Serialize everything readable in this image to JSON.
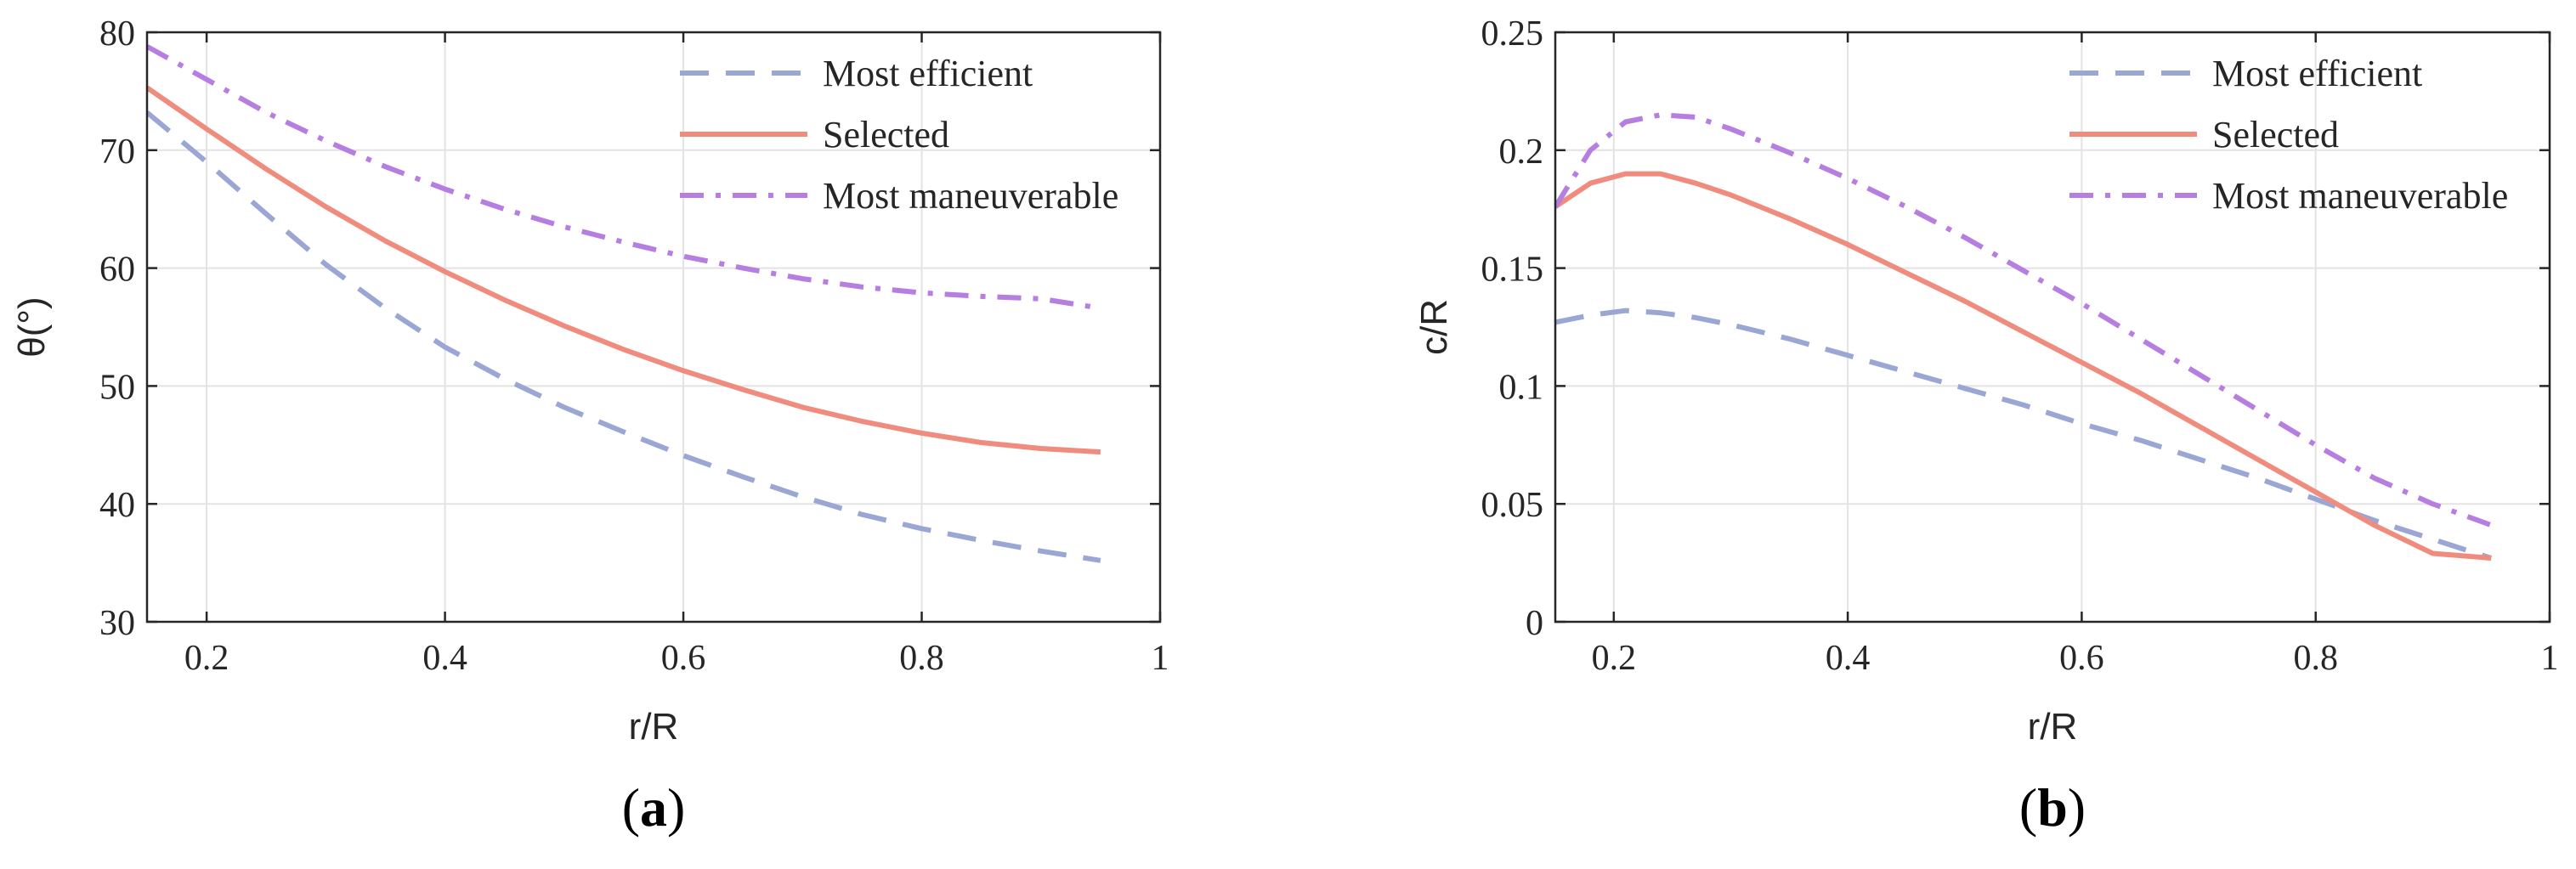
{
  "chart_data": [
    {
      "type": "line",
      "panel_label": "a",
      "xlabel": "r/R",
      "ylabel": "θ(°)",
      "xlim": [
        0.15,
        1
      ],
      "ylim": [
        30,
        80
      ],
      "xticks": [
        0.2,
        0.4,
        0.6,
        0.8,
        1
      ],
      "yticks": [
        30,
        40,
        50,
        60,
        70,
        80
      ],
      "xtick_labels": [
        "0.2",
        "0.4",
        "0.6",
        "0.8",
        "1"
      ],
      "ytick_labels": [
        "30",
        "40",
        "50",
        "60",
        "70",
        "80"
      ],
      "grid": true,
      "legend_position": "top-right",
      "series": [
        {
          "name": "Most efficient",
          "style": "dashed",
          "color": "#9aa6d4",
          "x": [
            0.15,
            0.2,
            0.25,
            0.3,
            0.35,
            0.4,
            0.45,
            0.5,
            0.55,
            0.6,
            0.65,
            0.7,
            0.75,
            0.8,
            0.85,
            0.9,
            0.95
          ],
          "y": [
            73.2,
            69.0,
            64.6,
            60.3,
            56.6,
            53.3,
            50.6,
            48.2,
            46.1,
            44.1,
            42.3,
            40.6,
            39.1,
            37.9,
            36.9,
            36.0,
            35.2
          ]
        },
        {
          "name": "Selected",
          "style": "solid",
          "color": "#f08c7e",
          "x": [
            0.15,
            0.2,
            0.25,
            0.3,
            0.35,
            0.4,
            0.45,
            0.5,
            0.55,
            0.6,
            0.65,
            0.7,
            0.75,
            0.8,
            0.85,
            0.9,
            0.95
          ],
          "y": [
            75.3,
            71.8,
            68.4,
            65.2,
            62.3,
            59.7,
            57.3,
            55.1,
            53.1,
            51.3,
            49.7,
            48.2,
            47.0,
            46.0,
            45.2,
            44.7,
            44.4
          ]
        },
        {
          "name": "Most maneuverable",
          "style": "dashdot",
          "color": "#b57ee0",
          "x": [
            0.15,
            0.2,
            0.25,
            0.3,
            0.35,
            0.4,
            0.45,
            0.5,
            0.55,
            0.6,
            0.65,
            0.7,
            0.75,
            0.8,
            0.85,
            0.9,
            0.95
          ],
          "y": [
            78.8,
            76.0,
            73.2,
            70.8,
            68.6,
            66.7,
            65.0,
            63.5,
            62.2,
            61.0,
            60.0,
            59.1,
            58.4,
            57.9,
            57.6,
            57.4,
            56.6
          ]
        }
      ]
    },
    {
      "type": "line",
      "panel_label": "b",
      "xlabel": "r/R",
      "ylabel": "c/R",
      "xlim": [
        0.15,
        1
      ],
      "ylim": [
        0,
        0.25
      ],
      "xticks": [
        0.2,
        0.4,
        0.6,
        0.8,
        1
      ],
      "yticks": [
        0,
        0.05,
        0.1,
        0.15,
        0.2,
        0.25
      ],
      "xtick_labels": [
        "0.2",
        "0.4",
        "0.6",
        "0.8",
        "1"
      ],
      "ytick_labels": [
        "0",
        "0.05",
        "0.1",
        "0.15",
        "0.2",
        "0.25"
      ],
      "grid": true,
      "legend_position": "top-right",
      "series": [
        {
          "name": "Most efficient",
          "style": "dashed",
          "color": "#9aa6d4",
          "x": [
            0.15,
            0.18,
            0.21,
            0.24,
            0.27,
            0.3,
            0.35,
            0.4,
            0.45,
            0.5,
            0.55,
            0.6,
            0.65,
            0.7,
            0.75,
            0.8,
            0.85,
            0.9,
            0.95
          ],
          "y": [
            0.127,
            0.13,
            0.132,
            0.131,
            0.129,
            0.126,
            0.12,
            0.113,
            0.106,
            0.099,
            0.092,
            0.084,
            0.077,
            0.069,
            0.061,
            0.052,
            0.043,
            0.035,
            0.027
          ]
        },
        {
          "name": "Selected",
          "style": "solid",
          "color": "#f08c7e",
          "x": [
            0.15,
            0.18,
            0.21,
            0.24,
            0.27,
            0.3,
            0.35,
            0.4,
            0.45,
            0.5,
            0.55,
            0.6,
            0.65,
            0.7,
            0.75,
            0.8,
            0.85,
            0.9,
            0.95
          ],
          "y": [
            0.176,
            0.186,
            0.19,
            0.19,
            0.186,
            0.181,
            0.171,
            0.16,
            0.148,
            0.136,
            0.123,
            0.11,
            0.097,
            0.083,
            0.069,
            0.055,
            0.041,
            0.029,
            0.027
          ]
        },
        {
          "name": "Most maneuverable",
          "style": "dashdot",
          "color": "#b57ee0",
          "x": [
            0.15,
            0.18,
            0.21,
            0.24,
            0.27,
            0.3,
            0.35,
            0.4,
            0.45,
            0.5,
            0.55,
            0.6,
            0.65,
            0.7,
            0.75,
            0.8,
            0.85,
            0.9,
            0.95
          ],
          "y": [
            0.176,
            0.2,
            0.212,
            0.215,
            0.214,
            0.209,
            0.199,
            0.188,
            0.176,
            0.163,
            0.149,
            0.135,
            0.12,
            0.105,
            0.09,
            0.075,
            0.061,
            0.05,
            0.041
          ]
        }
      ]
    }
  ]
}
